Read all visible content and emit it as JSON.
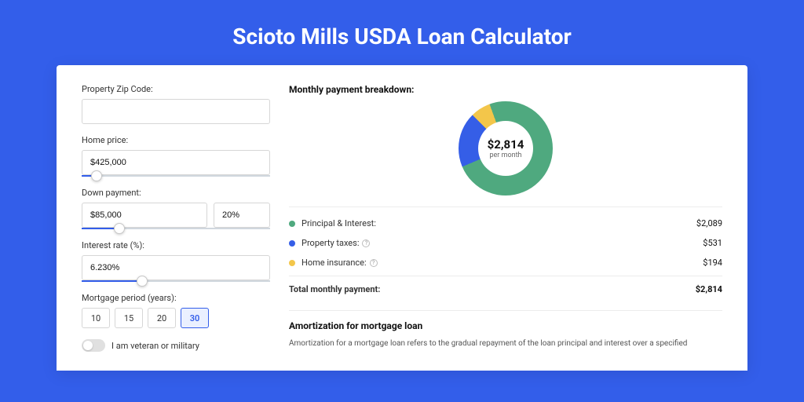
{
  "page": {
    "background_color": "#335eea",
    "card_background": "#ffffff",
    "title": "Scioto Mills USDA Loan Calculator",
    "title_color": "#ffffff",
    "title_fontsize": 28
  },
  "form": {
    "zip": {
      "label": "Property Zip Code:",
      "value": ""
    },
    "home_price": {
      "label": "Home price:",
      "value": "$425,000",
      "slider_pct": 8
    },
    "down_payment": {
      "label": "Down payment:",
      "value": "$85,000",
      "percent": "20%",
      "slider_pct": 20
    },
    "interest_rate": {
      "label": "Interest rate (%):",
      "value": "6.230%",
      "slider_pct": 32
    },
    "mortgage_period": {
      "label": "Mortgage period (years):",
      "options": [
        "10",
        "15",
        "20",
        "30"
      ],
      "active": "30"
    },
    "veteran": {
      "label": "I am veteran or military",
      "checked": false
    }
  },
  "breakdown": {
    "title": "Monthly payment breakdown:",
    "donut": {
      "center_value": "$2,814",
      "center_sub": "per month",
      "segments": [
        {
          "label": "Principal & Interest",
          "value": 2089,
          "color": "#4fa97f",
          "pct": 74.2
        },
        {
          "label": "Property taxes",
          "value": 531,
          "color": "#355ee7",
          "pct": 18.9
        },
        {
          "label": "Home insurance",
          "value": 194,
          "color": "#f3c64a",
          "pct": 6.9
        }
      ],
      "ring_thickness_pct": 21,
      "hole_color": "#ffffff"
    },
    "rows": [
      {
        "dot_color": "#4fa97f",
        "label": "Principal & Interest:",
        "info": false,
        "value": "$2,089"
      },
      {
        "dot_color": "#355ee7",
        "label": "Property taxes:",
        "info": true,
        "value": "$531"
      },
      {
        "dot_color": "#f3c64a",
        "label": "Home insurance:",
        "info": true,
        "value": "$194"
      }
    ],
    "total": {
      "label": "Total monthly payment:",
      "value": "$2,814"
    }
  },
  "amortization": {
    "title": "Amortization for mortgage loan",
    "text": "Amortization for a mortgage loan refers to the gradual repayment of the loan principal and interest over a specified"
  }
}
